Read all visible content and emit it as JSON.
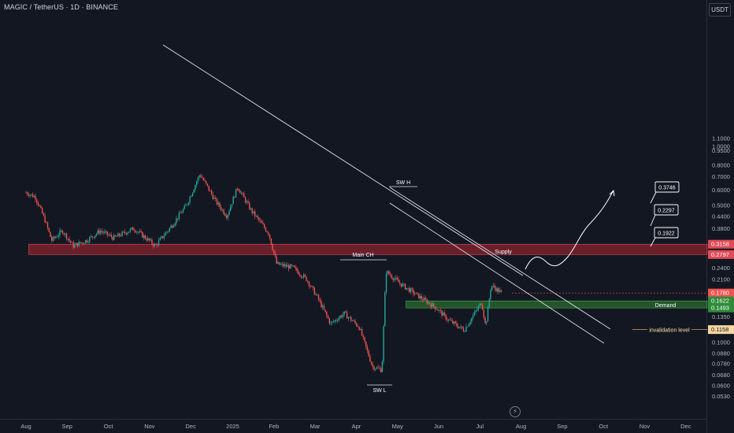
{
  "header": {
    "symbol_line": "MAGIC / TetherUS · 1D · BINANCE",
    "currency_button": "USDT"
  },
  "colors": {
    "background": "#131722",
    "up": "#26a69a",
    "down": "#ef5350",
    "supply": "#b22833",
    "demand": "#2e7d32",
    "line": "#e0e3eb"
  },
  "icons": {
    "bottom": "lightning-icon"
  },
  "chart_data": {
    "type": "candlestick",
    "title": "MAGIC / TetherUS · 1D · BINANCE",
    "y_scale": "log",
    "y_ticks": [
      "1.1000",
      "1.0000",
      "0.9500",
      "0.8000",
      "0.7000",
      "0.6000",
      "0.5000",
      "0.4400",
      "0.3800",
      "0.2400",
      "0.2100",
      "0.1350",
      "0.1000",
      "0.0880",
      "0.0780",
      "0.0680",
      "0.0600",
      "0.0530"
    ],
    "x_ticks": [
      "Aug",
      "Sep",
      "Oct",
      "Nov",
      "Dec",
      "2025",
      "Feb",
      "Mar",
      "Apr",
      "May",
      "Jun",
      "Jul",
      "Aug",
      "Sep",
      "Oct",
      "Nov",
      "Dec"
    ],
    "price_path": [
      {
        "date": "2024-08-01",
        "close": 0.58
      },
      {
        "date": "2024-08-08",
        "close": 0.55
      },
      {
        "date": "2024-08-15",
        "close": 0.42
      },
      {
        "date": "2024-08-20",
        "close": 0.33
      },
      {
        "date": "2024-08-28",
        "close": 0.37
      },
      {
        "date": "2024-09-05",
        "close": 0.31
      },
      {
        "date": "2024-09-15",
        "close": 0.33
      },
      {
        "date": "2024-09-25",
        "close": 0.37
      },
      {
        "date": "2024-10-05",
        "close": 0.34
      },
      {
        "date": "2024-10-20",
        "close": 0.38
      },
      {
        "date": "2024-11-05",
        "close": 0.31
      },
      {
        "date": "2024-11-18",
        "close": 0.4
      },
      {
        "date": "2024-11-28",
        "close": 0.5
      },
      {
        "date": "2024-12-08",
        "close": 0.72
      },
      {
        "date": "2024-12-20",
        "close": 0.52
      },
      {
        "date": "2024-12-28",
        "close": 0.44
      },
      {
        "date": "2025-01-05",
        "close": 0.62
      },
      {
        "date": "2025-01-15",
        "close": 0.47
      },
      {
        "date": "2025-01-28",
        "close": 0.36
      },
      {
        "date": "2025-02-03",
        "close": 0.25
      },
      {
        "date": "2025-02-15",
        "close": 0.24
      },
      {
        "date": "2025-02-25",
        "close": 0.21
      },
      {
        "date": "2025-03-05",
        "close": 0.17
      },
      {
        "date": "2025-03-15",
        "close": 0.124
      },
      {
        "date": "2025-03-25",
        "close": 0.14
      },
      {
        "date": "2025-04-05",
        "close": 0.12
      },
      {
        "date": "2025-04-15",
        "close": 0.075
      },
      {
        "date": "2025-04-22",
        "close": 0.072
      },
      {
        "date": "2025-04-25",
        "close": 0.23
      },
      {
        "date": "2025-05-05",
        "close": 0.2
      },
      {
        "date": "2025-05-20",
        "close": 0.17
      },
      {
        "date": "2025-06-01",
        "close": 0.15
      },
      {
        "date": "2025-06-10",
        "close": 0.13
      },
      {
        "date": "2025-06-22",
        "close": 0.115
      },
      {
        "date": "2025-07-05",
        "close": 0.16
      },
      {
        "date": "2025-07-08",
        "close": 0.12
      },
      {
        "date": "2025-07-12",
        "close": 0.195
      },
      {
        "date": "2025-07-20",
        "close": 0.178
      }
    ],
    "zones": [
      {
        "name": "Supply",
        "from": 0.2797,
        "to": 0.3158
      },
      {
        "name": "Demand",
        "from": 0.1493,
        "to": 0.1622
      }
    ],
    "price_labels": [
      {
        "value": "0.3158",
        "kind": "supply"
      },
      {
        "value": "0.2797",
        "kind": "supply"
      },
      {
        "value": "0.1780",
        "sub": "15:21:58",
        "kind": "current"
      },
      {
        "value": "0.1622",
        "kind": "demand"
      },
      {
        "value": "0.1493",
        "kind": "demand"
      },
      {
        "value": "0.1158",
        "kind": "invalidation"
      }
    ],
    "targets": [
      "0.3746",
      "0.2297",
      "0.1922"
    ],
    "annotations": [
      "SW H",
      "Main CH",
      "SW L",
      "invalidation level",
      "Supply",
      "Demand"
    ]
  }
}
